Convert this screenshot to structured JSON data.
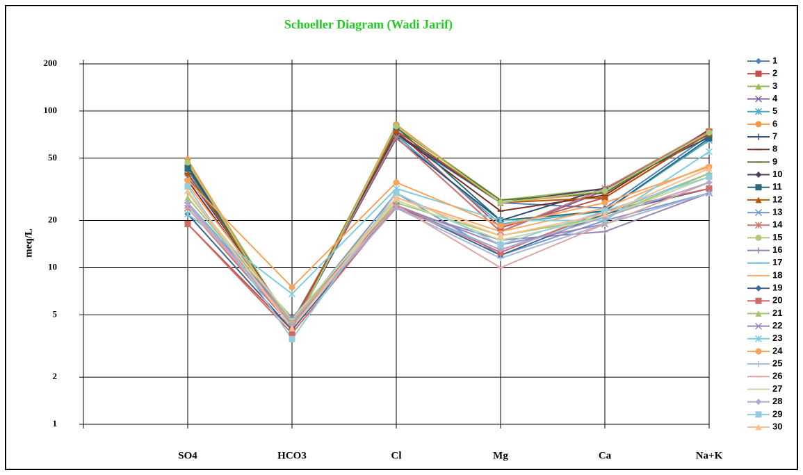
{
  "chart_data": {
    "type": "line",
    "title": "Schoeller Diagram (Wadi Jarif)",
    "y_label": "meq/L",
    "log_scale": true,
    "grid": true,
    "legend": "right",
    "ylim": [
      1,
      200
    ],
    "yticks": [
      1,
      2,
      5,
      10,
      20,
      50,
      100,
      200
    ],
    "categories": [
      null,
      "SO4",
      "HCO3",
      "Cl",
      "Mg",
      "Ca",
      "Na+K"
    ],
    "series": [
      {
        "name": "1",
        "color": "#4F81BD",
        "values": [
          null,
          46,
          4.2,
          70,
          26,
          24,
          70
        ]
      },
      {
        "name": "2",
        "color": "#C0504D",
        "values": [
          null,
          19,
          4,
          75,
          18,
          28,
          73
        ]
      },
      {
        "name": "3",
        "color": "#9BBB59",
        "values": [
          null,
          48,
          4.2,
          80,
          27,
          32,
          75
        ]
      },
      {
        "name": "4",
        "color": "#8064A2",
        "values": [
          null,
          38,
          4.5,
          68,
          17,
          31,
          72
        ]
      },
      {
        "name": "5",
        "color": "#4BACC6",
        "values": [
          null,
          42,
          4,
          70,
          19,
          23,
          65
        ]
      },
      {
        "name": "6",
        "color": "#F79646",
        "values": [
          null,
          49,
          3.9,
          82,
          26,
          30,
          75
        ]
      },
      {
        "name": "7",
        "color": "#2C4D75",
        "values": [
          null,
          40,
          4.1,
          67,
          20,
          32,
          68
        ]
      },
      {
        "name": "8",
        "color": "#772C2A",
        "values": [
          null,
          36,
          4.3,
          72,
          23,
          29,
          76
        ]
      },
      {
        "name": "9",
        "color": "#5F7530",
        "values": [
          null,
          45,
          4,
          78,
          27,
          30,
          74
        ]
      },
      {
        "name": "10",
        "color": "#4D3B62",
        "values": [
          null,
          44,
          4.2,
          72,
          26,
          32,
          71
        ]
      },
      {
        "name": "11",
        "color": "#276A7C",
        "values": [
          null,
          43,
          4,
          79,
          20,
          23,
          67
        ]
      },
      {
        "name": "12",
        "color": "#B65708",
        "values": [
          null,
          40,
          4.3,
          75,
          26,
          28,
          72
        ]
      },
      {
        "name": "13",
        "color": "#729ACA",
        "values": [
          null,
          25,
          4.5,
          30,
          12,
          20,
          30
        ]
      },
      {
        "name": "14",
        "color": "#CD7371",
        "values": [
          null,
          24,
          4.2,
          68,
          17,
          32,
          74
        ]
      },
      {
        "name": "15",
        "color": "#AFC97A",
        "values": [
          null,
          47,
          3.9,
          80,
          26,
          31,
          73
        ]
      },
      {
        "name": "16",
        "color": "#9983B5",
        "values": [
          null,
          30,
          4.4,
          24,
          15,
          17,
          30
        ]
      },
      {
        "name": "17",
        "color": "#6FBDD1",
        "values": [
          null,
          26,
          4.8,
          25,
          13,
          22,
          40
        ]
      },
      {
        "name": "18",
        "color": "#F9AB6B",
        "values": [
          null,
          34,
          4.6,
          28,
          17,
          24,
          45
        ]
      },
      {
        "name": "19",
        "color": "#3A6595",
        "values": [
          null,
          22,
          4,
          25,
          12,
          22,
          32
        ]
      },
      {
        "name": "20",
        "color": "#D16965",
        "values": [
          null,
          19,
          3.8,
          25,
          12.5,
          23,
          32
        ]
      },
      {
        "name": "21",
        "color": "#A5C46B",
        "values": [
          null,
          28,
          4.6,
          26,
          16,
          21,
          40
        ]
      },
      {
        "name": "22",
        "color": "#9A86B8",
        "values": [
          null,
          25,
          4.8,
          25,
          14,
          19,
          30
        ]
      },
      {
        "name": "23",
        "color": "#7FCCDD",
        "values": [
          null,
          22,
          6.8,
          32,
          20,
          20,
          55
        ]
      },
      {
        "name": "24",
        "color": "#F8A35C",
        "values": [
          null,
          36,
          7.5,
          35,
          18.5,
          26,
          44
        ]
      },
      {
        "name": "25",
        "color": "#A7B8DA",
        "values": [
          null,
          25,
          4.3,
          24,
          11.5,
          19,
          30
        ]
      },
      {
        "name": "26",
        "color": "#DDA6A4",
        "values": [
          null,
          24,
          4.5,
          25,
          10,
          19,
          35
        ]
      },
      {
        "name": "27",
        "color": "#C5D9A3",
        "values": [
          null,
          30,
          4.7,
          27,
          15,
          21,
          38
        ]
      },
      {
        "name": "28",
        "color": "#B3A6CC",
        "values": [
          null,
          26,
          4.3,
          24,
          13,
          21,
          35
        ]
      },
      {
        "name": "29",
        "color": "#93CDDD",
        "values": [
          null,
          33,
          3.5,
          30,
          14,
          23,
          38
        ]
      },
      {
        "name": "30",
        "color": "#FAC090",
        "values": [
          null,
          31,
          4.1,
          28,
          16,
          22,
          43
        ]
      }
    ]
  }
}
